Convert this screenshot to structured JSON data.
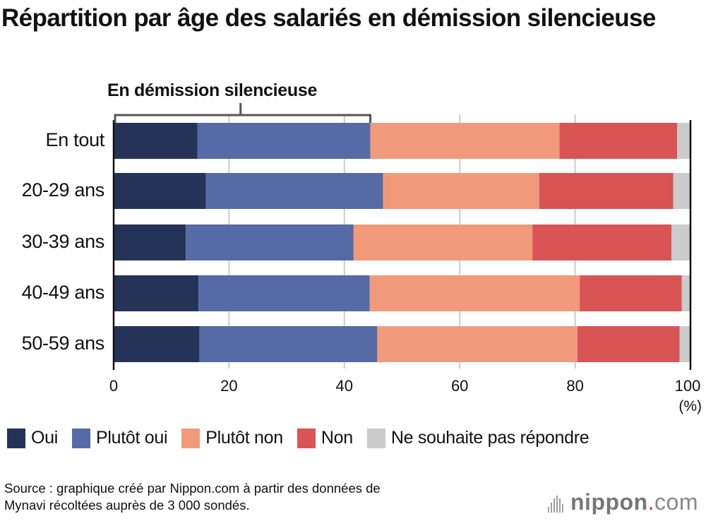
{
  "chart_data": {
    "type": "bar",
    "orientation": "horizontal",
    "stacked": true,
    "title": "Répartition par âge des salariés en démission silencieuse",
    "xlabel": "",
    "ylabel": "",
    "unit_label": "(%)",
    "xlim": [
      0,
      100
    ],
    "xticks": [
      0,
      20,
      40,
      60,
      80,
      100
    ],
    "grid": true,
    "legend_position": "bottom",
    "categories": [
      "En tout",
      "20-29 ans",
      "30-39 ans",
      "40-49 ans",
      "50-59 ans"
    ],
    "series": [
      {
        "name": "Oui",
        "color": "#263359",
        "values": [
          14.5,
          16.0,
          12.5,
          14.7,
          14.9
        ]
      },
      {
        "name": "Plutôt oui",
        "color": "#566ba5",
        "values": [
          30.0,
          30.7,
          29.1,
          29.7,
          30.8
        ]
      },
      {
        "name": "Plutôt non",
        "color": "#f19a7b",
        "values": [
          32.8,
          27.1,
          31.0,
          36.4,
          34.7
        ]
      },
      {
        "name": "Non",
        "color": "#d95455",
        "values": [
          20.4,
          23.2,
          24.1,
          17.7,
          17.7
        ]
      },
      {
        "name": "Ne souhaite pas répondre",
        "color": "#cbcbcb",
        "values": [
          2.3,
          3.0,
          3.3,
          1.5,
          1.9
        ]
      }
    ],
    "annotations": [
      {
        "text": "En démission silencieuse",
        "type": "bracket",
        "applies_to": "En tout",
        "span": [
          "Oui",
          "Plutôt oui"
        ],
        "range": [
          0,
          44.5
        ]
      }
    ]
  },
  "source": {
    "line1": "Source : graphique créé par Nippon.com à partir des données de",
    "line2": "Mynavi récoltées auprès de 3 000 sondés."
  },
  "logo": {
    "name": "nippon",
    "dot": ".",
    "tld": "com"
  }
}
